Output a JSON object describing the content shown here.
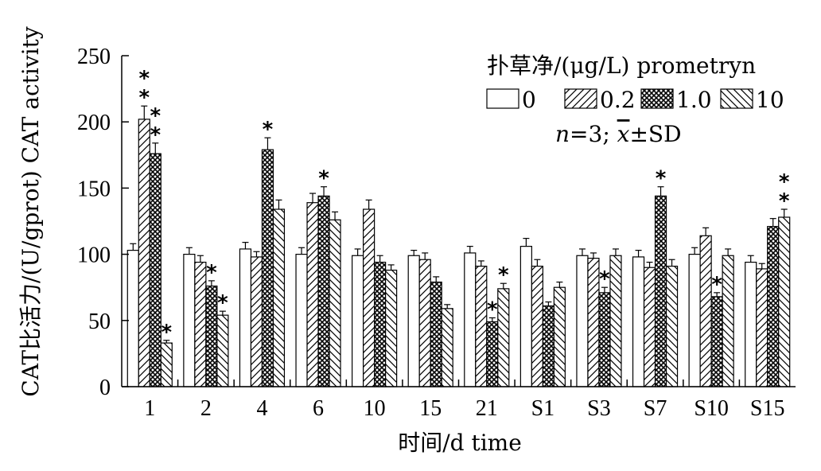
{
  "chart_data": {
    "type": "bar",
    "xlabel": "时间/d time",
    "ylabel": "CAT比活力/(U/gprot) CAT activity",
    "ylim": [
      0,
      250
    ],
    "yticks": [
      "0",
      "50",
      "100",
      "150",
      "200",
      "250"
    ],
    "categories": [
      "1",
      "2",
      "4",
      "6",
      "10",
      "15",
      "21",
      "S1",
      "S3",
      "S7",
      "S10",
      "S15"
    ],
    "legend": {
      "title": "扑草净/(μg/L) prometryn",
      "note_n": "n",
      "note_rest": "=3; ",
      "note_x": "x",
      "note_sd": "±SD",
      "placement": "top-right"
    },
    "series": [
      {
        "name": "0",
        "pattern": "white",
        "values": [
          103,
          100,
          104,
          100,
          99,
          99,
          101,
          106,
          99,
          98,
          100,
          94
        ],
        "errors": [
          5,
          5,
          5,
          5,
          5,
          4,
          5,
          6,
          5,
          5,
          5,
          5
        ],
        "stars": [
          "",
          "",
          "",
          "",
          "",
          "",
          "",
          "",
          "",
          "",
          "",
          ""
        ]
      },
      {
        "name": "0.2",
        "pattern": "diagonal",
        "values": [
          202,
          94,
          98,
          139,
          134,
          96,
          91,
          91,
          97,
          90,
          114,
          89
        ],
        "errors": [
          10,
          5,
          4,
          7,
          7,
          5,
          4,
          5,
          4,
          4,
          6,
          4
        ],
        "stars": [
          "**",
          "",
          "",
          "",
          "",
          "",
          "",
          "",
          "",
          "",
          "",
          ""
        ]
      },
      {
        "name": "1.0",
        "pattern": "crosshatch",
        "values": [
          176,
          76,
          179,
          144,
          94,
          79,
          49,
          61,
          71,
          144,
          68,
          121
        ],
        "errors": [
          8,
          4,
          9,
          7,
          5,
          4,
          3,
          3,
          4,
          7,
          3,
          6
        ],
        "stars": [
          "**",
          "*",
          "*",
          "*",
          "",
          "",
          "*",
          "",
          "*",
          "*",
          "*",
          ""
        ]
      },
      {
        "name": "10",
        "pattern": "backdiagonal",
        "values": [
          33,
          54,
          134,
          126,
          88,
          59,
          74,
          75,
          99,
          91,
          99,
          128
        ],
        "errors": [
          2,
          3,
          7,
          6,
          4,
          3,
          4,
          4,
          5,
          5,
          5,
          6
        ],
        "stars": [
          "*",
          "*",
          "",
          "",
          "",
          "",
          "*",
          "",
          "",
          "",
          "",
          "**"
        ]
      }
    ]
  }
}
